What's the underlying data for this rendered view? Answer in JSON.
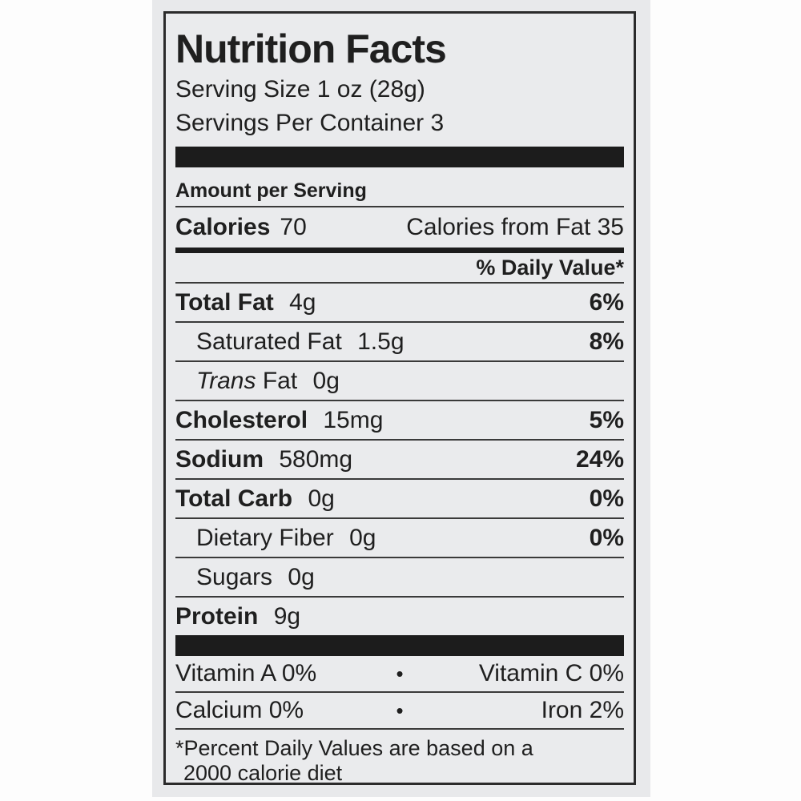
{
  "colors": {
    "page_bg": "#fdfdfd",
    "photo_bg": "#e8e9eb",
    "label_bg": "#eaebed",
    "border": "#2b2b2b",
    "text": "#1f1f1f",
    "bar": "#1c1c1c"
  },
  "label": {
    "title": "Nutrition Facts",
    "serving_size": "Serving Size 1 oz (28g)",
    "servings_per_container": "Servings Per Container 3",
    "amount_per_serving": "Amount per Serving",
    "calories": {
      "label": "Calories",
      "value": "70",
      "from_fat": "Calories from Fat 35"
    },
    "daily_value_header": "% Daily Value*",
    "nutrients": [
      {
        "name": "Total Fat",
        "amount": "4g",
        "dv": "6%"
      },
      {
        "name": "Saturated Fat",
        "amount": "1.5g",
        "dv": "8%"
      },
      {
        "name_italic": "Trans",
        "name": "Fat",
        "amount": "0g",
        "dv": ""
      },
      {
        "name": "Cholesterol",
        "amount": "15mg",
        "dv": "5%"
      },
      {
        "name": "Sodium",
        "amount": "580mg",
        "dv": "24%"
      },
      {
        "name": "Total Carb",
        "amount": "0g",
        "dv": "0%"
      },
      {
        "name": "Dietary Fiber",
        "amount": "0g",
        "dv": "0%"
      },
      {
        "name": "Sugars",
        "amount": "0g",
        "dv": ""
      },
      {
        "name": "Protein",
        "amount": "9g",
        "dv": ""
      }
    ],
    "vitamins": {
      "bullet": "•",
      "row1_left": "Vitamin A  0%",
      "row1_right": "Vitamin C  0%",
      "row2_left": "Calcium  0%",
      "row2_right": "Iron  2%"
    },
    "footnote_line1": "*Percent Daily Values are based on a",
    "footnote_line2": "2000 calorie diet"
  }
}
